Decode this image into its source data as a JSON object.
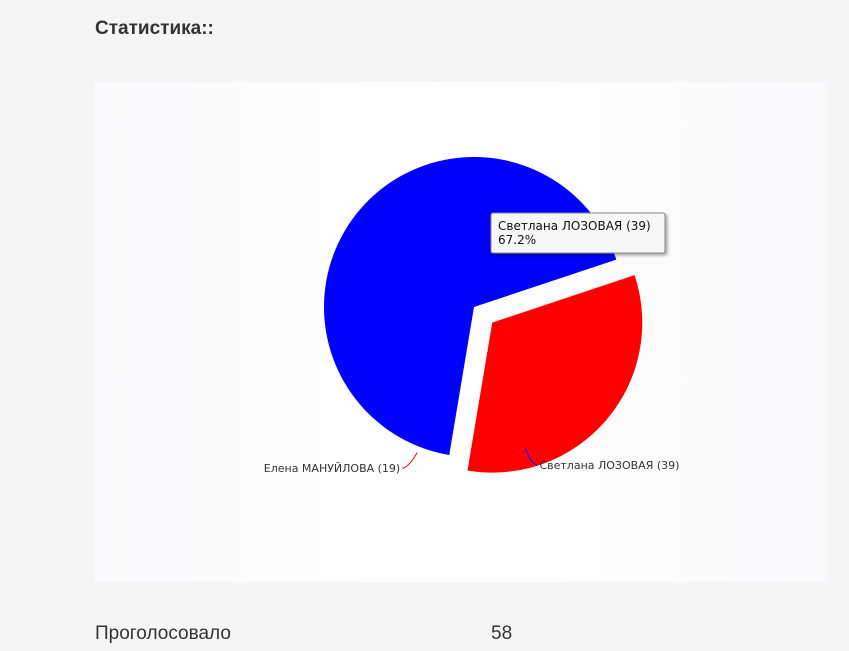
{
  "heading": "Статистика::",
  "chart_data": {
    "type": "pie",
    "title": "",
    "slices": [
      {
        "name": "Светлана ЛОЗОВАЯ",
        "value": 39,
        "label": "Светлана ЛОЗОВАЯ (39)",
        "percent_label": "67.2%",
        "color": "#0000ff",
        "exploded": false
      },
      {
        "name": "Елена МАНУЙЛОВА",
        "value": 19,
        "label": "Елена МАНУЙЛОВА (19)",
        "color": "#ff0000",
        "exploded": true
      }
    ],
    "tooltip": {
      "line1": "Светлана ЛОЗОВАЯ (39)",
      "line2": "67.2%"
    }
  },
  "stats": {
    "label": "Проголосовало",
    "value": "58"
  }
}
